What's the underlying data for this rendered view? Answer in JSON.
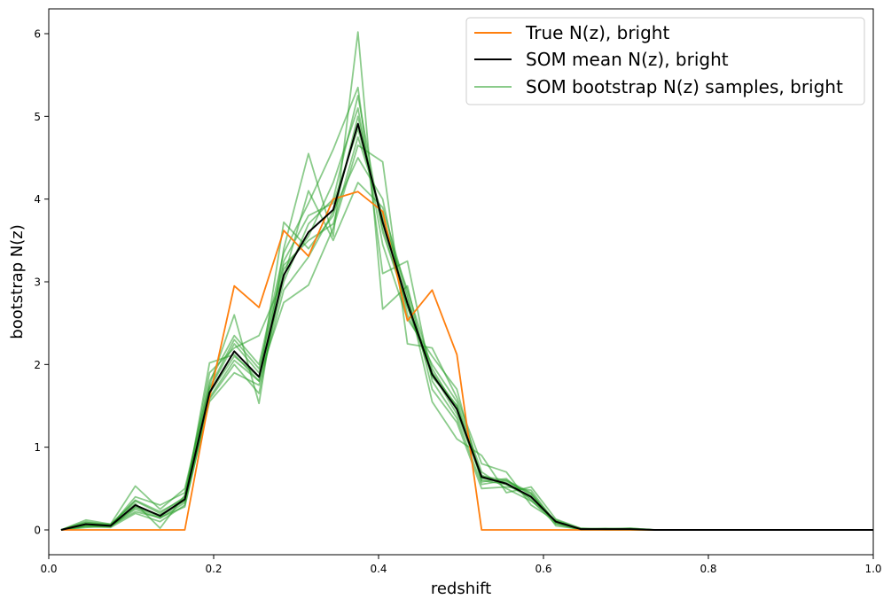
{
  "chart_data": {
    "type": "line",
    "xlabel": "redshift",
    "ylabel": "bootstrap N(z)",
    "xlim": [
      0.0,
      1.0
    ],
    "ylim": [
      -0.3,
      6.3
    ],
    "xticks": [
      "0.0",
      "0.2",
      "0.4",
      "0.6",
      "0.8",
      "1.0"
    ],
    "yticks": [
      "0",
      "1",
      "2",
      "3",
      "4",
      "5",
      "6"
    ],
    "grid": false,
    "legend_position": "top-right",
    "x": [
      0.015,
      0.045,
      0.075,
      0.105,
      0.135,
      0.165,
      0.195,
      0.225,
      0.255,
      0.285,
      0.315,
      0.345,
      0.375,
      0.405,
      0.435,
      0.465,
      0.495,
      0.525,
      0.555,
      0.585,
      0.615,
      0.645,
      0.675,
      0.705,
      0.735,
      0.765,
      0.795,
      0.825,
      0.855,
      0.885,
      0.915,
      0.945,
      0.975,
      1.0
    ],
    "series": [
      {
        "name": "True N(z), bright",
        "color": "#ff7f0e",
        "role": "true",
        "values": [
          0,
          0,
          0,
          0,
          0,
          0,
          1.6,
          2.95,
          2.69,
          3.62,
          3.31,
          4.0,
          4.09,
          3.85,
          2.53,
          2.9,
          2.12,
          0,
          0,
          0,
          0,
          0,
          0,
          0,
          0,
          0,
          0,
          0,
          0,
          0,
          0,
          0,
          0,
          0
        ]
      },
      {
        "name": "SOM mean N(z), bright",
        "color": "#000000",
        "role": "mean",
        "values": [
          0,
          0.07,
          0.05,
          0.3,
          0.17,
          0.37,
          1.66,
          2.16,
          1.85,
          3.08,
          3.6,
          3.87,
          4.91,
          3.72,
          2.74,
          1.88,
          1.46,
          0.64,
          0.56,
          0.4,
          0.1,
          0.01,
          0.01,
          0.01,
          0,
          0,
          0,
          0,
          0,
          0,
          0,
          0,
          0,
          0
        ]
      },
      {
        "name": "SOM bootstrap N(z) samples, bright",
        "color": "#2ca02c",
        "role": "bootstrap",
        "samples": [
          [
            0,
            0.05,
            0.04,
            0.25,
            0.14,
            0.33,
            1.6,
            2.05,
            1.8,
            3.0,
            3.7,
            4.0,
            5.25,
            3.6,
            2.7,
            1.85,
            1.5,
            0.6,
            0.55,
            0.38,
            0.1,
            0.01,
            0.01,
            0.02,
            0,
            0,
            0,
            0,
            0,
            0,
            0,
            0,
            0,
            0
          ],
          [
            0,
            0.08,
            0.06,
            0.35,
            0.2,
            0.4,
            1.7,
            2.25,
            1.9,
            3.2,
            3.5,
            3.7,
            4.75,
            3.8,
            2.8,
            1.9,
            1.4,
            0.65,
            0.6,
            0.42,
            0.09,
            0.02,
            0.01,
            0.01,
            0,
            0,
            0,
            0,
            0,
            0,
            0,
            0,
            0,
            0
          ],
          [
            0,
            0.12,
            0.07,
            0.53,
            0.25,
            0.5,
            1.75,
            2.6,
            1.53,
            3.4,
            4.55,
            3.55,
            6.02,
            2.67,
            2.95,
            1.7,
            1.3,
            0.5,
            0.52,
            0.48,
            0.08,
            0,
            0,
            0,
            0,
            0,
            0,
            0,
            0,
            0,
            0,
            0,
            0,
            0
          ],
          [
            0,
            0.04,
            0.03,
            0.2,
            0.1,
            0.3,
            1.55,
            1.9,
            1.75,
            2.9,
            3.3,
            3.85,
            4.5,
            4.0,
            2.6,
            2.0,
            1.55,
            0.7,
            0.5,
            0.35,
            0.12,
            0.01,
            0.02,
            0.01,
            0,
            0,
            0,
            0,
            0,
            0,
            0,
            0,
            0,
            0
          ],
          [
            0,
            0.1,
            0.05,
            0.4,
            0.3,
            0.45,
            1.8,
            2.35,
            2.0,
            3.35,
            3.95,
            4.6,
            5.35,
            3.1,
            3.25,
            1.8,
            1.35,
            0.55,
            0.6,
            0.45,
            0.05,
            0.01,
            0.01,
            0.02,
            0,
            0,
            0,
            0,
            0,
            0,
            0,
            0,
            0,
            0
          ],
          [
            0,
            0.06,
            0.04,
            0.28,
            0.18,
            0.35,
            1.65,
            2.1,
            1.85,
            2.75,
            2.96,
            3.65,
            4.65,
            4.45,
            2.25,
            2.2,
            1.6,
            0.8,
            0.7,
            0.3,
            0.11,
            0.01,
            0.01,
            0.01,
            0,
            0,
            0,
            0,
            0,
            0,
            0,
            0,
            0,
            0
          ],
          [
            0,
            0.09,
            0.07,
            0.32,
            0.02,
            0.42,
            1.9,
            2.2,
            2.35,
            3.05,
            4.1,
            3.5,
            4.2,
            3.9,
            2.85,
            1.55,
            1.1,
            0.9,
            0.45,
            0.52,
            0.13,
            0.02,
            0,
            0,
            0,
            0,
            0,
            0,
            0,
            0,
            0,
            0,
            0,
            0
          ],
          [
            0,
            0.03,
            0.05,
            0.22,
            0.15,
            0.28,
            1.58,
            2.0,
            1.65,
            3.15,
            3.55,
            4.2,
            5.1,
            3.45,
            2.55,
            2.1,
            1.7,
            0.58,
            0.62,
            0.36,
            0.07,
            0.01,
            0.01,
            0.01,
            0,
            0,
            0,
            0,
            0,
            0,
            0,
            0,
            0,
            0
          ],
          [
            0,
            0.07,
            0.06,
            0.36,
            0.22,
            0.38,
            1.72,
            2.3,
            1.95,
            3.25,
            3.8,
            3.95,
            4.85,
            3.75,
            2.9,
            1.95,
            1.45,
            0.62,
            0.58,
            0.44,
            0.1,
            0.01,
            0.01,
            0.01,
            0,
            0,
            0,
            0,
            0,
            0,
            0,
            0,
            0,
            0
          ],
          [
            0,
            0.05,
            0.05,
            0.27,
            0.16,
            0.36,
            2.02,
            2.12,
            1.8,
            3.72,
            3.4,
            3.8,
            5.0,
            3.65,
            2.7,
            1.9,
            1.5,
            0.66,
            0.55,
            0.4,
            0.1,
            0.01,
            0.01,
            0.01,
            0,
            0,
            0,
            0,
            0,
            0,
            0,
            0,
            0,
            0
          ]
        ]
      }
    ]
  }
}
